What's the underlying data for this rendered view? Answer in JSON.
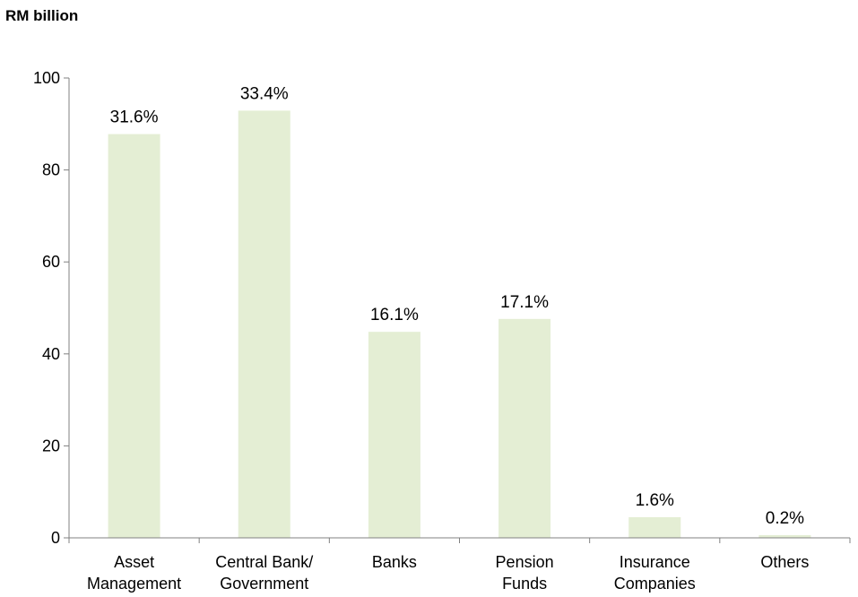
{
  "chart_data": {
    "type": "bar",
    "title": "",
    "ylabel": "RM billion",
    "xlabel": "",
    "ylim": [
      0,
      100
    ],
    "yticks": [
      0,
      20,
      40,
      60,
      80,
      100
    ],
    "categories": [
      [
        "Asset",
        "Management"
      ],
      [
        "Central Bank/",
        "Government"
      ],
      [
        "Banks"
      ],
      [
        "Pension",
        "Funds"
      ],
      [
        "Insurance",
        "Companies"
      ],
      [
        "Others"
      ]
    ],
    "values": [
      87.8,
      92.9,
      44.8,
      47.6,
      4.5,
      0.6
    ],
    "data_labels": [
      "31.6%",
      "33.4%",
      "16.1%",
      "17.1%",
      "1.6%",
      "0.2%"
    ],
    "grid": false,
    "legend": "none",
    "colors": {
      "bar": "#e4eed4",
      "axis": "#808080"
    }
  }
}
